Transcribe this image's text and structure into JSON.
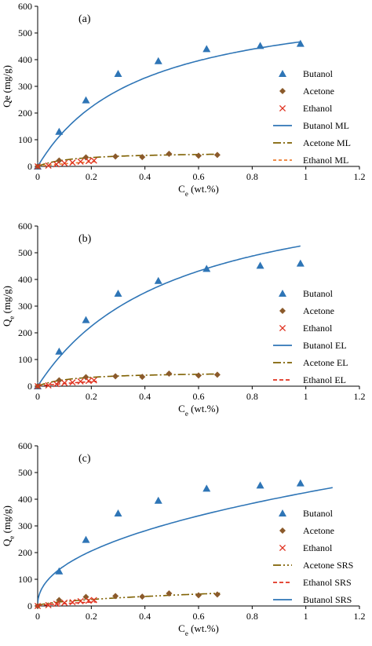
{
  "colors": {
    "butanol": "#2E75B6",
    "acetone": "#7F6000",
    "acetone_marker": "#8B5A2B",
    "ethanol": "#E0301E",
    "ethanol_line": "#ED7D31",
    "axis": "#000000"
  },
  "chart_data": [
    {
      "panel": "(a)",
      "type": "scatter",
      "xlabel": "C",
      "xlabel_sub": "e",
      "xlabel_unit": " (wt.%)",
      "ylabel": "Qe (mg/g)",
      "ylabel_sub": "",
      "ylabel_rest": "",
      "xlim": [
        0,
        1.2
      ],
      "ylim": [
        0,
        600
      ],
      "xticks": [
        "0",
        "0.2",
        "0.4",
        "0.6",
        "0.8",
        "1",
        "1.2"
      ],
      "yticks": [
        "0",
        "100",
        "200",
        "300",
        "400",
        "500",
        "600"
      ],
      "legend_position": "right",
      "series": [
        {
          "name": "Butanol",
          "kind": "triangle",
          "color_key": "butanol",
          "x": [
            0,
            0.08,
            0.18,
            0.3,
            0.45,
            0.63,
            0.83,
            0.98
          ],
          "y": [
            0,
            130,
            248,
            347,
            395,
            440,
            452,
            460
          ]
        },
        {
          "name": "Acetone",
          "kind": "diamond",
          "color_key": "acetone_marker",
          "x": [
            0,
            0.08,
            0.18,
            0.29,
            0.39,
            0.49,
            0.6,
            0.67
          ],
          "y": [
            0,
            22,
            34,
            37,
            35,
            47,
            40,
            43
          ]
        },
        {
          "name": "Ethanol",
          "kind": "cross",
          "color_key": "ethanol",
          "x": [
            0,
            0.04,
            0.07,
            0.1,
            0.13,
            0.16,
            0.19,
            0.21
          ],
          "y": [
            0,
            3,
            8,
            12,
            14,
            18,
            20,
            22
          ]
        },
        {
          "name": "Butanol ML",
          "kind": "line",
          "color_key": "butanol",
          "dash": "",
          "model": "langmuir",
          "qm": 650,
          "k": 2.6,
          "xmax": 0.98
        },
        {
          "name": "Acetone ML",
          "kind": "line",
          "color_key": "acetone",
          "dash": "10,3,2,3",
          "model": "langmuir",
          "qm": 54,
          "k": 8.0,
          "xmax": 0.68
        },
        {
          "name": "Ethanol ML",
          "kind": "line",
          "color_key": "ethanol_line",
          "dash": "4,3",
          "model": "langmuir",
          "qm": 60,
          "k": 2.0,
          "xmax": 0.22
        }
      ]
    },
    {
      "panel": "(b)",
      "type": "scatter",
      "xlabel": "C",
      "xlabel_sub": "e",
      "xlabel_unit": " (wt.%)",
      "ylabel": "Q",
      "ylabel_sub": "e",
      "ylabel_rest": " (mg/g)",
      "xlim": [
        0,
        1.2
      ],
      "ylim": [
        0,
        600
      ],
      "xticks": [
        "0",
        "0.2",
        "0.4",
        "0.6",
        "0.8",
        "1",
        "1.2"
      ],
      "yticks": [
        "0",
        "100",
        "200",
        "300",
        "400",
        "500",
        "600"
      ],
      "legend_position": "right",
      "series": [
        {
          "name": "Butanol",
          "kind": "triangle",
          "color_key": "butanol",
          "x": [
            0,
            0.08,
            0.18,
            0.3,
            0.45,
            0.63,
            0.83,
            0.98
          ],
          "y": [
            0,
            130,
            248,
            347,
            395,
            440,
            452,
            460
          ]
        },
        {
          "name": "Acetone",
          "kind": "diamond",
          "color_key": "acetone_marker",
          "x": [
            0,
            0.08,
            0.18,
            0.29,
            0.39,
            0.49,
            0.6,
            0.67
          ],
          "y": [
            0,
            22,
            34,
            37,
            35,
            47,
            40,
            43
          ]
        },
        {
          "name": "Ethanol",
          "kind": "cross",
          "color_key": "ethanol",
          "x": [
            0,
            0.04,
            0.07,
            0.1,
            0.13,
            0.16,
            0.19,
            0.21
          ],
          "y": [
            0,
            3,
            8,
            12,
            14,
            18,
            20,
            22
          ]
        },
        {
          "name": "Butanol EL",
          "kind": "line",
          "color_key": "butanol",
          "dash": "",
          "model": "langmuir",
          "qm": 800,
          "k": 1.95,
          "xmax": 0.98
        },
        {
          "name": "Acetone EL",
          "kind": "line",
          "color_key": "acetone",
          "dash": "10,3,2,3",
          "model": "langmuir",
          "qm": 54,
          "k": 8.0,
          "xmax": 0.68
        },
        {
          "name": "Ethanol EL",
          "kind": "line",
          "color_key": "ethanol",
          "dash": "5,3",
          "model": "langmuir",
          "qm": 60,
          "k": 2.0,
          "xmax": 0.22
        }
      ]
    },
    {
      "panel": "(c)",
      "type": "scatter",
      "xlabel": "C",
      "xlabel_sub": "e",
      "xlabel_unit": " (wt.%)",
      "ylabel": "Q",
      "ylabel_sub": "e",
      "ylabel_rest": " (mg/g)",
      "xlim": [
        0,
        1.2
      ],
      "ylim": [
        0,
        600
      ],
      "xticks": [
        "0",
        "0.2",
        "0.4",
        "0.6",
        "0.8",
        "1",
        "1.2"
      ],
      "yticks": [
        "0",
        "100",
        "200",
        "300",
        "400",
        "500",
        "600"
      ],
      "legend_position": "right",
      "series": [
        {
          "name": "Butanol",
          "kind": "triangle",
          "color_key": "butanol",
          "x": [
            0.08,
            0.18,
            0.3,
            0.45,
            0.63,
            0.83,
            0.98
          ],
          "y": [
            130,
            248,
            347,
            395,
            440,
            452,
            460
          ]
        },
        {
          "name": "Acetone",
          "kind": "diamond",
          "color_key": "acetone_marker",
          "x": [
            0,
            0.08,
            0.18,
            0.29,
            0.39,
            0.49,
            0.6,
            0.67
          ],
          "y": [
            0,
            22,
            34,
            37,
            35,
            47,
            40,
            43
          ]
        },
        {
          "name": "Ethanol",
          "kind": "cross",
          "color_key": "ethanol",
          "x": [
            0,
            0.04,
            0.07,
            0.1,
            0.13,
            0.16,
            0.19,
            0.21
          ],
          "y": [
            0,
            3,
            8,
            12,
            14,
            18,
            20,
            22
          ]
        },
        {
          "name": "Acetone SRS",
          "kind": "line",
          "color_key": "acetone",
          "dash": "10,3,2,3,2,3",
          "model": "power",
          "a": 59,
          "n": 0.55,
          "xmax": 0.68
        },
        {
          "name": "Ethanol SRS",
          "kind": "line",
          "color_key": "ethanol",
          "dash": "5,3",
          "model": "power",
          "a": 45,
          "n": 0.7,
          "xmax": 0.22
        },
        {
          "name": "Butanol SRS",
          "kind": "line",
          "color_key": "butanol",
          "dash": "",
          "model": "power",
          "a": 425,
          "n": 0.45,
          "xmax": 1.1,
          "steep_start": true
        }
      ]
    }
  ]
}
